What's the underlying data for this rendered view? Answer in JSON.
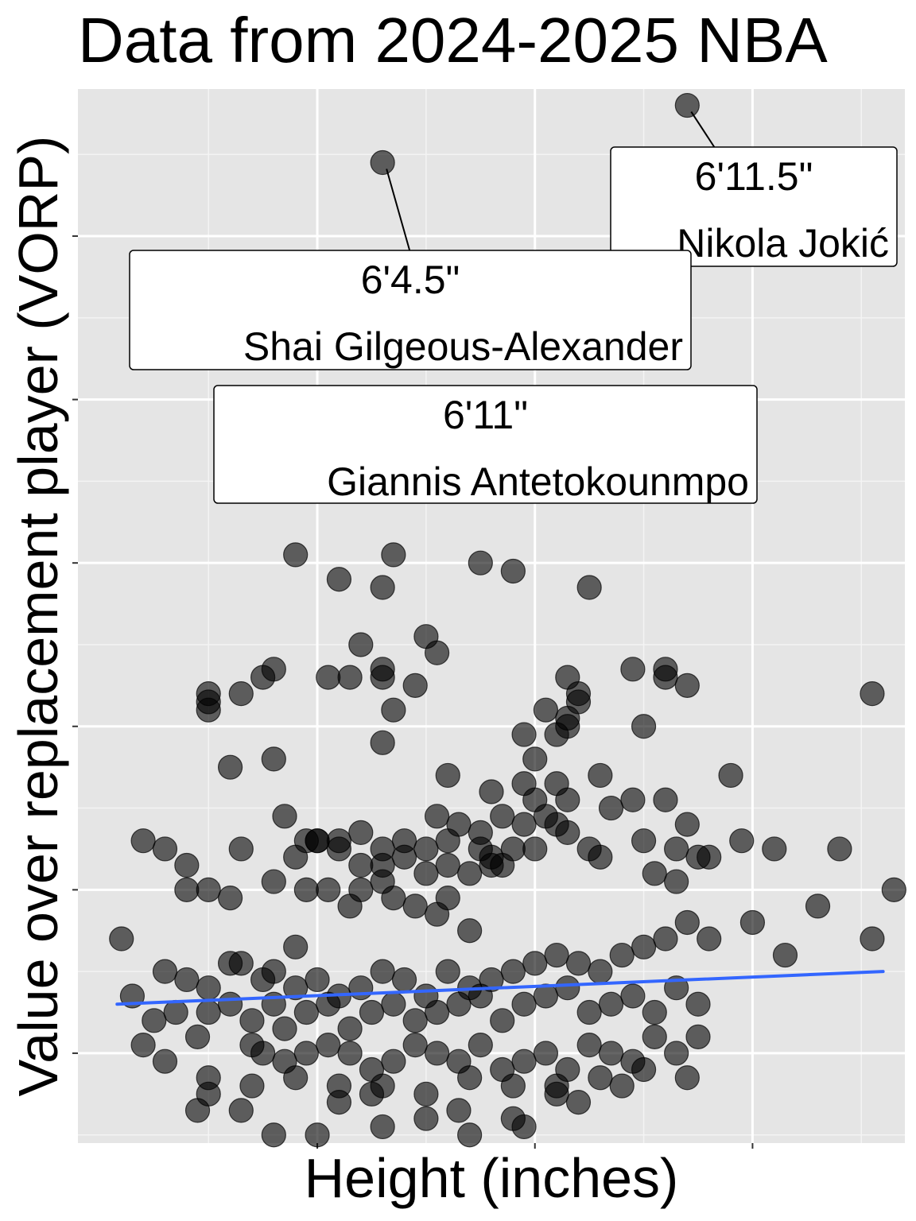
{
  "chart_data": {
    "type": "scatter",
    "title": "Data from 2024-2025 NBA",
    "xlabel": "Height (inches)",
    "ylabel": "Value over replacement player (VORP)",
    "xlim": [
      69.5,
      88.5
    ],
    "ylim": [
      -3.1,
      9.8
    ],
    "x_major_ticks": [
      75,
      80,
      85
    ],
    "y_major_ticks": [
      -2,
      0,
      2,
      4,
      6,
      8
    ],
    "x_tick_labels_shown": false,
    "y_tick_labels_shown": false,
    "grid": true,
    "point_color": "#000000",
    "point_opacity": 0.6,
    "trend_line_color": "#3366FF",
    "trend_line": {
      "x": [
        70.4,
        88.0
      ],
      "y": [
        -1.4,
        -1.0
      ]
    },
    "annotations": [
      {
        "height_label": "6'11.5\"",
        "name": "Nikola Jokić",
        "x": 83.5,
        "y": 9.6
      },
      {
        "height_label": "6'4.5\"",
        "name": "Shai Gilgeous-Alexander",
        "x": 76.5,
        "y": 8.9
      },
      {
        "height_label": "6'11\"",
        "name": "Giannis Antetokounmpo",
        "x": 83.0,
        "y": 5.4
      }
    ],
    "points": [
      [
        83.5,
        9.6
      ],
      [
        76.5,
        8.9
      ],
      [
        83.0,
        5.4
      ],
      [
        74.5,
        4.1
      ],
      [
        76.75,
        4.1
      ],
      [
        78.75,
        4.0
      ],
      [
        79.5,
        3.9
      ],
      [
        75.5,
        3.8
      ],
      [
        76.5,
        3.7
      ],
      [
        81.25,
        3.7
      ],
      [
        77.5,
        3.1
      ],
      [
        76.0,
        3.0
      ],
      [
        77.75,
        2.9
      ],
      [
        73.75,
        2.6
      ],
      [
        74.0,
        2.7
      ],
      [
        75.25,
        2.6
      ],
      [
        75.75,
        2.6
      ],
      [
        76.5,
        2.6
      ],
      [
        76.5,
        2.7
      ],
      [
        77.25,
        2.5
      ],
      [
        80.75,
        2.6
      ],
      [
        81.0,
        2.4
      ],
      [
        82.25,
        2.7
      ],
      [
        83.0,
        2.6
      ],
      [
        83.0,
        2.7
      ],
      [
        83.5,
        2.5
      ],
      [
        87.75,
        2.4
      ],
      [
        72.5,
        2.4
      ],
      [
        72.5,
        2.3
      ],
      [
        73.25,
        2.4
      ],
      [
        72.5,
        2.2
      ],
      [
        76.75,
        2.2
      ],
      [
        80.25,
        2.2
      ],
      [
        81.0,
        2.3
      ],
      [
        80.75,
        2.0
      ],
      [
        80.75,
        2.1
      ],
      [
        82.5,
        2.0
      ],
      [
        79.75,
        1.9
      ],
      [
        80.5,
        1.9
      ],
      [
        74.0,
        1.6
      ],
      [
        76.5,
        1.8
      ],
      [
        80.0,
        1.6
      ],
      [
        81.5,
        1.4
      ],
      [
        84.5,
        1.4
      ],
      [
        73.0,
        1.5
      ],
      [
        78.0,
        1.4
      ],
      [
        79.75,
        1.3
      ],
      [
        80.5,
        1.3
      ],
      [
        80.75,
        1.1
      ],
      [
        81.75,
        1.0
      ],
      [
        82.25,
        1.1
      ],
      [
        83.0,
        1.1
      ],
      [
        83.25,
        0.5
      ],
      [
        84.0,
        0.4
      ],
      [
        84.75,
        0.6
      ],
      [
        85.5,
        0.5
      ],
      [
        87.0,
        0.5
      ],
      [
        83.5,
        0.8
      ],
      [
        83.75,
        0.4
      ],
      [
        79.0,
        1.2
      ],
      [
        79.25,
        0.9
      ],
      [
        79.75,
        0.8
      ],
      [
        80.0,
        1.1
      ],
      [
        80.25,
        0.9
      ],
      [
        80.5,
        0.8
      ],
      [
        80.75,
        0.7
      ],
      [
        81.25,
        0.5
      ],
      [
        81.5,
        0.4
      ],
      [
        82.5,
        0.6
      ],
      [
        82.75,
        0.2
      ],
      [
        83.25,
        0.1
      ],
      [
        74.25,
        0.9
      ],
      [
        74.75,
        0.6
      ],
      [
        75.5,
        0.5
      ],
      [
        76.0,
        0.3
      ],
      [
        76.5,
        0.1
      ],
      [
        77.0,
        0.4
      ],
      [
        77.5,
        0.2
      ],
      [
        78.0,
        0.3
      ],
      [
        78.5,
        0.2
      ],
      [
        79.0,
        0.4
      ],
      [
        79.25,
        0.3
      ],
      [
        74.5,
        0.4
      ],
      [
        76.5,
        0.3
      ],
      [
        72.0,
        0.3
      ],
      [
        73.25,
        0.5
      ],
      [
        75.0,
        0.6
      ],
      [
        75.5,
        0.6
      ],
      [
        77.75,
        0.9
      ],
      [
        78.25,
        0.8
      ],
      [
        78.75,
        0.7
      ],
      [
        79.5,
        0.5
      ],
      [
        72.0,
        0.0
      ],
      [
        71.5,
        0.5
      ],
      [
        71.0,
        0.6
      ],
      [
        70.5,
        -0.6
      ],
      [
        72.5,
        0.0
      ],
      [
        73.0,
        -0.1
      ],
      [
        74.75,
        0.0
      ],
      [
        75.25,
        0.0
      ],
      [
        75.75,
        -0.2
      ],
      [
        76.0,
        0.0
      ],
      [
        76.75,
        -0.1
      ],
      [
        77.25,
        -0.2
      ],
      [
        77.75,
        -0.3
      ],
      [
        78.0,
        -0.1
      ],
      [
        78.5,
        -0.5
      ],
      [
        74.0,
        0.1
      ],
      [
        75.0,
        0.6
      ],
      [
        76.0,
        0.7
      ],
      [
        76.5,
        0.5
      ],
      [
        77.0,
        0.6
      ],
      [
        77.5,
        0.5
      ],
      [
        78.0,
        0.6
      ],
      [
        78.75,
        0.5
      ],
      [
        79.0,
        0.3
      ],
      [
        80.0,
        0.5
      ],
      [
        73.0,
        -0.9
      ],
      [
        74.5,
        -0.7
      ],
      [
        71.5,
        -1.0
      ],
      [
        72.0,
        -1.1
      ],
      [
        72.5,
        -1.2
      ],
      [
        73.25,
        -0.9
      ],
      [
        73.75,
        -1.1
      ],
      [
        74.0,
        -1.0
      ],
      [
        74.5,
        -1.2
      ],
      [
        75.0,
        -1.1
      ],
      [
        75.5,
        -1.3
      ],
      [
        76.0,
        -1.2
      ],
      [
        76.5,
        -1.0
      ],
      [
        77.0,
        -1.1
      ],
      [
        77.5,
        -1.3
      ],
      [
        78.0,
        -1.0
      ],
      [
        78.5,
        -1.2
      ],
      [
        79.0,
        -1.1
      ],
      [
        79.5,
        -1.0
      ],
      [
        80.0,
        -0.9
      ],
      [
        80.5,
        -0.8
      ],
      [
        81.0,
        -0.9
      ],
      [
        81.5,
        -1.0
      ],
      [
        82.0,
        -0.8
      ],
      [
        82.5,
        -0.7
      ],
      [
        83.0,
        -0.6
      ],
      [
        83.5,
        -0.4
      ],
      [
        84.0,
        -0.6
      ],
      [
        85.0,
        -0.4
      ],
      [
        85.75,
        -0.8
      ],
      [
        86.5,
        -0.2
      ],
      [
        87.75,
        -0.6
      ],
      [
        88.25,
        0.0
      ],
      [
        70.75,
        -1.3
      ],
      [
        71.25,
        -1.6
      ],
      [
        71.75,
        -1.5
      ],
      [
        72.5,
        -1.5
      ],
      [
        73.0,
        -1.4
      ],
      [
        73.5,
        -1.6
      ],
      [
        74.0,
        -1.4
      ],
      [
        74.25,
        -1.7
      ],
      [
        74.75,
        -1.5
      ],
      [
        75.25,
        -1.4
      ],
      [
        75.75,
        -1.7
      ],
      [
        76.25,
        -1.5
      ],
      [
        76.75,
        -1.4
      ],
      [
        77.25,
        -1.6
      ],
      [
        77.75,
        -1.5
      ],
      [
        78.25,
        -1.4
      ],
      [
        78.75,
        -1.3
      ],
      [
        79.25,
        -1.6
      ],
      [
        79.75,
        -1.4
      ],
      [
        80.25,
        -1.3
      ],
      [
        80.75,
        -1.2
      ],
      [
        81.25,
        -1.5
      ],
      [
        81.75,
        -1.4
      ],
      [
        82.25,
        -1.3
      ],
      [
        82.75,
        -1.5
      ],
      [
        83.25,
        -1.2
      ],
      [
        83.75,
        -1.4
      ],
      [
        71.0,
        -1.9
      ],
      [
        71.5,
        -2.1
      ],
      [
        72.25,
        -1.8
      ],
      [
        73.5,
        -1.9
      ],
      [
        73.75,
        -2.0
      ],
      [
        74.25,
        -2.1
      ],
      [
        74.75,
        -2.0
      ],
      [
        75.25,
        -1.9
      ],
      [
        75.75,
        -2.0
      ],
      [
        76.25,
        -2.2
      ],
      [
        76.75,
        -2.1
      ],
      [
        77.25,
        -1.9
      ],
      [
        77.75,
        -2.0
      ],
      [
        78.25,
        -2.1
      ],
      [
        78.75,
        -1.9
      ],
      [
        79.25,
        -2.2
      ],
      [
        79.75,
        -2.1
      ],
      [
        80.25,
        -2.0
      ],
      [
        80.75,
        -2.2
      ],
      [
        81.25,
        -1.9
      ],
      [
        81.75,
        -2.0
      ],
      [
        82.25,
        -2.1
      ],
      [
        82.75,
        -1.8
      ],
      [
        83.25,
        -2.0
      ],
      [
        83.75,
        -1.8
      ],
      [
        72.5,
        -2.3
      ],
      [
        73.5,
        -2.4
      ],
      [
        74.5,
        -2.3
      ],
      [
        75.5,
        -2.4
      ],
      [
        76.5,
        -2.4
      ],
      [
        77.5,
        -2.5
      ],
      [
        78.5,
        -2.3
      ],
      [
        79.5,
        -2.4
      ],
      [
        80.5,
        -2.4
      ],
      [
        81.5,
        -2.3
      ],
      [
        82.5,
        -2.2
      ],
      [
        83.5,
        -2.3
      ],
      [
        72.5,
        -2.5
      ],
      [
        73.25,
        -2.7
      ],
      [
        75.5,
        -2.6
      ],
      [
        76.5,
        -2.9
      ],
      [
        77.5,
        -2.8
      ],
      [
        78.25,
        -2.7
      ],
      [
        79.5,
        -2.8
      ],
      [
        80.5,
        -2.5
      ],
      [
        81.0,
        -2.6
      ],
      [
        82.0,
        -2.4
      ],
      [
        76.25,
        -2.5
      ],
      [
        79.75,
        -2.9
      ],
      [
        72.25,
        -2.7
      ],
      [
        74.0,
        -3.0
      ],
      [
        75.0,
        -3.0
      ],
      [
        78.5,
        -3.0
      ]
    ]
  }
}
